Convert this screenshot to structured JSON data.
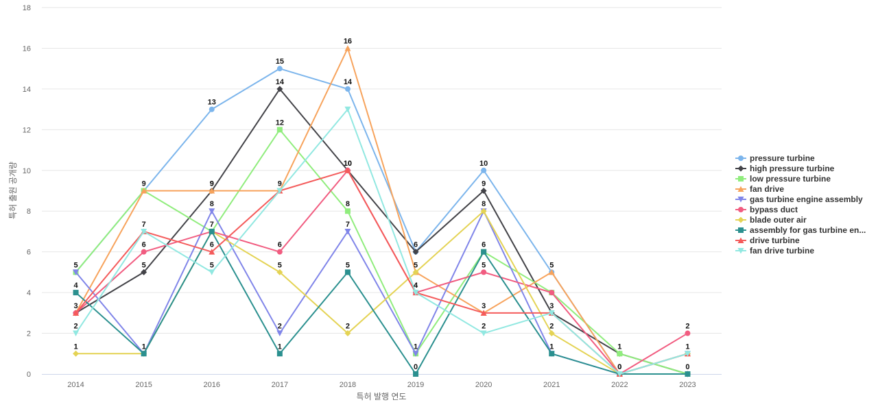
{
  "chart_data": {
    "type": "line",
    "title": "",
    "xlabel": "특허 발행 연도",
    "ylabel": "특허 출원 공개량",
    "ylim": [
      0,
      18
    ],
    "yticks": [
      "0",
      "2",
      "4",
      "6",
      "8",
      "10",
      "12",
      "14",
      "16",
      "18"
    ],
    "categories": [
      "2014",
      "2015",
      "2016",
      "2017",
      "2018",
      "2019",
      "2020",
      "2021",
      "2022",
      "2023"
    ],
    "grid": true,
    "legend_position": "right",
    "series": [
      {
        "name": "pressure turbine",
        "color": "#7cb5ec",
        "marker": "circle",
        "values": [
          5,
          9,
          13,
          15,
          14,
          6,
          10,
          5,
          0,
          1
        ],
        "show_labels": [
          false,
          false,
          true,
          true,
          true,
          false,
          true,
          false,
          false,
          false
        ]
      },
      {
        "name": "high pressure turbine",
        "color": "#434348",
        "marker": "diamond",
        "values": [
          3,
          5,
          9,
          14,
          10,
          6,
          9,
          3,
          1,
          0
        ],
        "show_labels": [
          false,
          true,
          true,
          true,
          false,
          true,
          true,
          false,
          false,
          false
        ]
      },
      {
        "name": "low pressure turbine",
        "color": "#90ed7d",
        "marker": "square",
        "values": [
          5,
          9,
          7,
          12,
          8,
          1,
          6,
          4,
          1,
          0
        ],
        "show_labels": [
          false,
          false,
          false,
          true,
          true,
          false,
          false,
          false,
          true,
          false
        ]
      },
      {
        "name": "fan drive",
        "color": "#f7a35c",
        "marker": "triangle",
        "values": [
          3,
          9,
          9,
          9,
          16,
          5,
          3,
          5,
          0,
          1
        ],
        "show_labels": [
          false,
          true,
          true,
          false,
          true,
          true,
          true,
          true,
          false,
          false
        ]
      },
      {
        "name": "gas turbine engine assembly",
        "color": "#8085e9",
        "marker": "triangle-down",
        "values": [
          5,
          1,
          8,
          2,
          7,
          1,
          8,
          1,
          0,
          1
        ],
        "show_labels": [
          true,
          false,
          true,
          true,
          true,
          true,
          true,
          false,
          false,
          false
        ]
      },
      {
        "name": "bypass duct",
        "color": "#f15c80",
        "marker": "circle",
        "values": [
          3,
          6,
          7,
          6,
          10,
          4,
          5,
          4,
          0,
          2
        ],
        "show_labels": [
          false,
          true,
          false,
          true,
          true,
          false,
          true,
          false,
          false,
          true
        ]
      },
      {
        "name": "blade outer air",
        "color": "#e4d354",
        "marker": "diamond",
        "values": [
          1,
          1,
          7,
          5,
          2,
          5,
          8,
          2,
          0,
          1
        ],
        "show_labels": [
          true,
          false,
          false,
          true,
          true,
          false,
          false,
          true,
          false,
          true
        ]
      },
      {
        "name": "assembly for gas turbine en...",
        "color": "#2b908f",
        "marker": "square",
        "values": [
          4,
          1,
          7,
          1,
          5,
          0,
          6,
          1,
          0,
          0
        ],
        "show_labels": [
          true,
          true,
          true,
          true,
          true,
          true,
          true,
          true,
          false,
          true
        ]
      },
      {
        "name": "drive turbine",
        "color": "#f45b5b",
        "marker": "triangle",
        "values": [
          3,
          7,
          6,
          9,
          10,
          4,
          3,
          3,
          0,
          1
        ],
        "show_labels": [
          true,
          true,
          true,
          true,
          true,
          true,
          false,
          true,
          true,
          false
        ]
      },
      {
        "name": "fan drive turbine",
        "color": "#91e8e1",
        "marker": "triangle-down",
        "values": [
          2,
          7,
          5,
          9,
          13,
          4,
          2,
          3,
          0,
          1
        ],
        "show_labels": [
          true,
          false,
          true,
          false,
          false,
          true,
          true,
          false,
          true,
          false
        ]
      }
    ]
  }
}
